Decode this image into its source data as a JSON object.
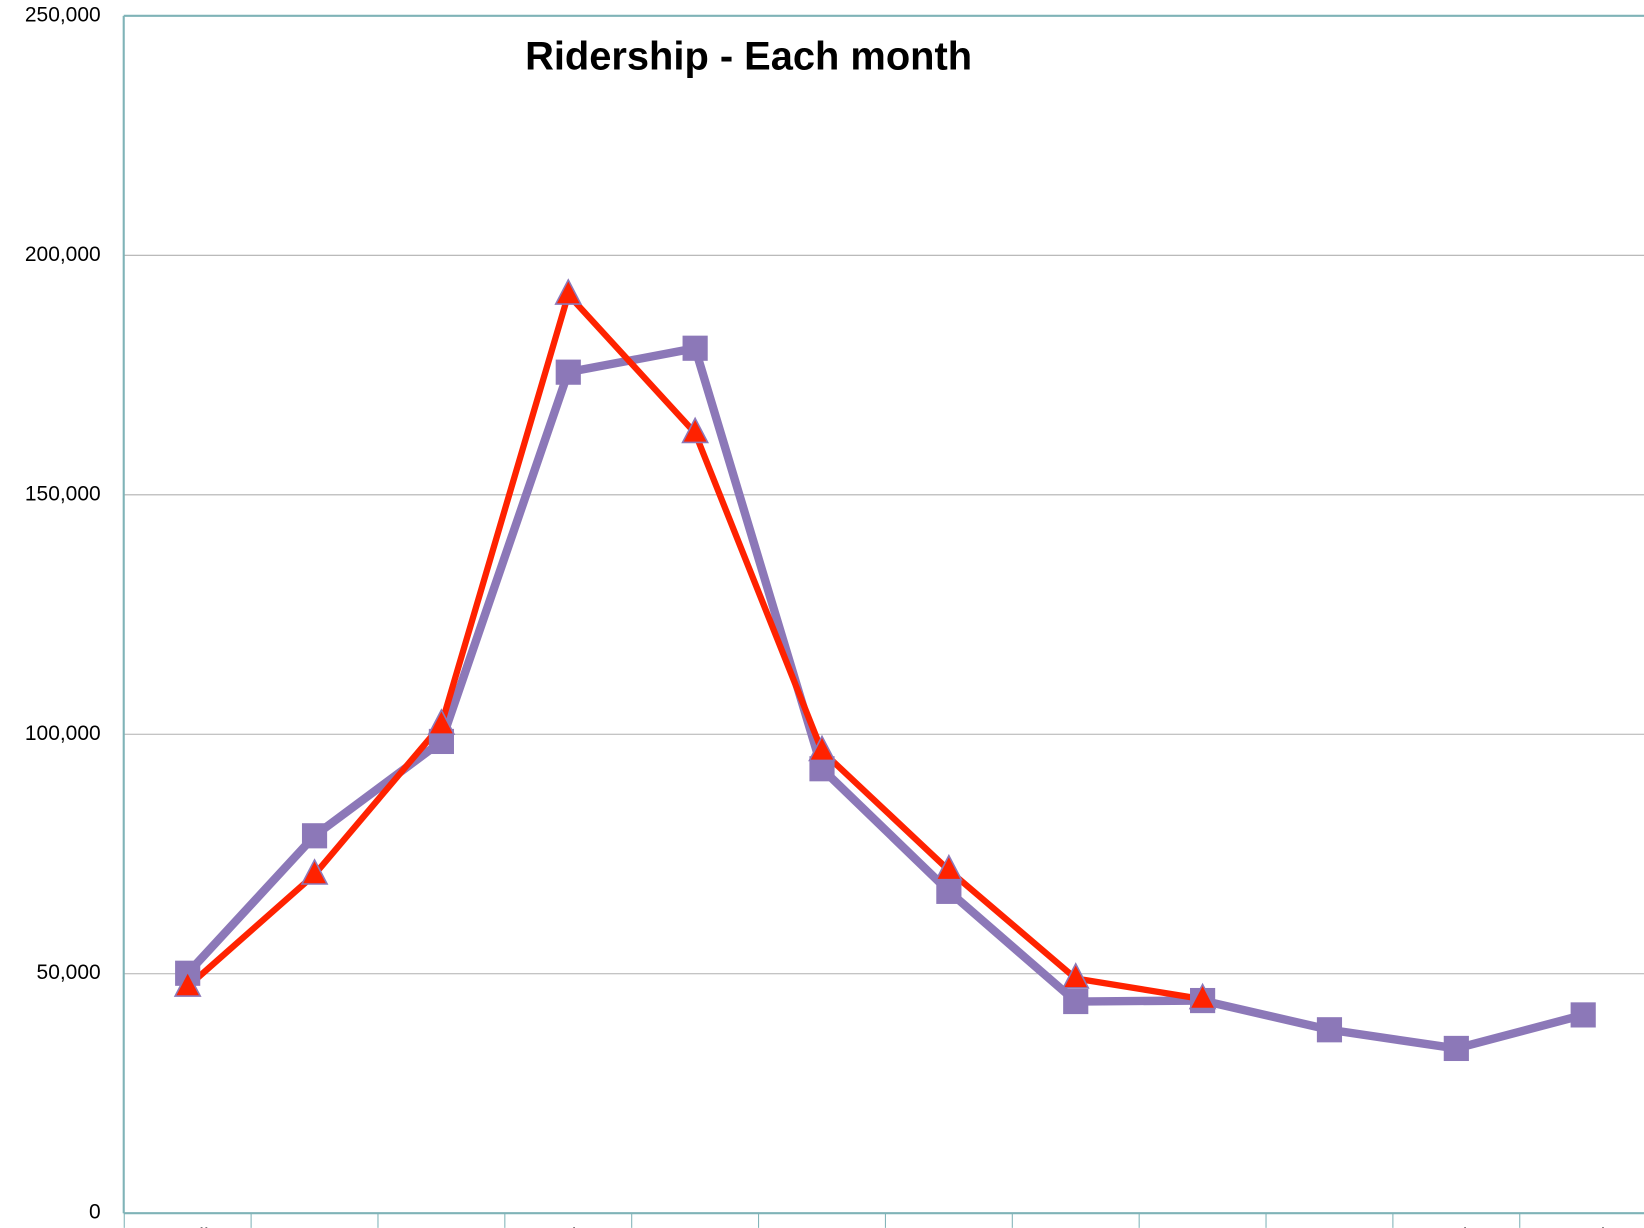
{
  "chart_data": {
    "type": "line",
    "title": "Ridership - Each month",
    "categories": [
      "April",
      "May",
      "June",
      "July",
      "August",
      "Sept",
      "Oct",
      "Nov",
      "Dec",
      "Jan",
      "Feb",
      "March"
    ],
    "series": [
      {
        "color": "#8c78b8",
        "marker": "square",
        "values": [
          50100,
          78800,
          98500,
          175600,
          180600,
          92800,
          67200,
          44200,
          44400,
          38300,
          34400,
          41400
        ]
      },
      {
        "color": "#ff2200",
        "marker": "triangle",
        "values": [
          47300,
          70700,
          102000,
          191800,
          162900,
          96500,
          71600,
          49000,
          44700,
          null,
          null,
          null
        ]
      }
    ],
    "ylim": [
      0,
      250000
    ],
    "yticks": [
      0,
      {
        "value": 50000,
        "label": "50,000"
      },
      {
        "value": 100000,
        "label": "100,000"
      },
      {
        "value": 150000,
        "label": "150,000"
      },
      {
        "value": 200000,
        "label": "200,000"
      },
      {
        "value": 250000,
        "label": "250,000"
      }
    ],
    "grid": true
  }
}
